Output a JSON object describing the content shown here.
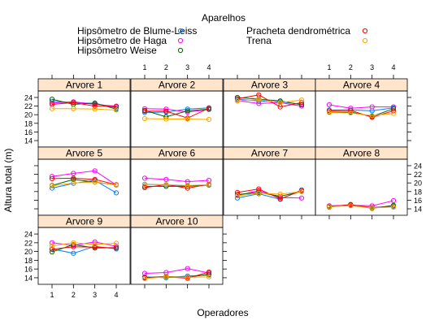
{
  "chart_data": {
    "type": "line",
    "legend_title": "Aparelhos",
    "xlabel": "Operadores",
    "ylabel": "Altura total (m)",
    "x": [
      1,
      2,
      3,
      4
    ],
    "x_ticks": [
      "1",
      "2",
      "3",
      "4"
    ],
    "y_ticks": [
      "14",
      "16",
      "18",
      "20",
      "22",
      "24"
    ],
    "ylim": [
      12.5,
      25.5
    ],
    "grid": false,
    "legend_position": "top",
    "series": [
      {
        "name": "Hipsômetro de Blume-Leiss",
        "color": "#0080ff"
      },
      {
        "name": "Hipsômetro de Haga",
        "color": "#ff00ff"
      },
      {
        "name": "Hipsômetro Weise",
        "color": "#006400"
      },
      {
        "name": "Pracheta dendrométrica",
        "color": "#ff0000"
      },
      {
        "name": "Trena",
        "color": "#ffa500"
      }
    ],
    "panels": [
      {
        "title": "Arvore 1",
        "values": [
          [
            23.1,
            22.8,
            22.6,
            21.6
          ],
          [
            22.7,
            23.0,
            22.4,
            22.0
          ],
          [
            23.6,
            22.4,
            22.7,
            21.3
          ],
          [
            22.4,
            22.8,
            22.0,
            21.9
          ],
          [
            21.4,
            21.4,
            21.3,
            21.1
          ]
        ]
      },
      {
        "title": "Arvore 2",
        "values": [
          [
            20.5,
            20.6,
            21.3,
            21.6
          ],
          [
            21.4,
            21.3,
            20.6,
            21.2
          ],
          [
            21.0,
            19.5,
            20.9,
            21.3
          ],
          [
            20.8,
            20.8,
            19.2,
            21.5
          ],
          [
            19.1,
            19.0,
            19.0,
            18.9
          ]
        ]
      },
      {
        "title": "Arvore 3",
        "values": [
          [
            23.6,
            23.2,
            23.0,
            22.4
          ],
          [
            23.3,
            22.6,
            22.8,
            22.0
          ],
          [
            24.0,
            23.6,
            23.2,
            22.3
          ],
          [
            23.7,
            24.6,
            21.8,
            22.8
          ],
          [
            23.2,
            23.5,
            22.8,
            23.4
          ]
        ]
      },
      {
        "title": "Arvore 4",
        "values": [
          [
            21.1,
            21.1,
            20.9,
            21.6
          ],
          [
            22.3,
            21.5,
            21.8,
            21.8
          ],
          [
            20.6,
            20.6,
            19.6,
            21.4
          ],
          [
            20.9,
            21.0,
            19.4,
            20.9
          ],
          [
            20.5,
            20.4,
            19.8,
            20.3
          ]
        ]
      },
      {
        "title": "Arvore 5",
        "values": [
          [
            18.8,
            19.9,
            20.6,
            17.7
          ],
          [
            21.5,
            22.2,
            22.8,
            19.5
          ],
          [
            19.4,
            20.8,
            20.2,
            19.5
          ],
          [
            21.0,
            21.1,
            20.8,
            19.6
          ],
          [
            19.3,
            20.0,
            20.2,
            19.5
          ]
        ]
      },
      {
        "title": "Arvore 6",
        "values": [
          [
            19.7,
            19.5,
            19.3,
            19.5
          ],
          [
            21.1,
            20.8,
            20.3,
            20.6
          ],
          [
            19.2,
            19.2,
            19.2,
            19.5
          ],
          [
            18.9,
            19.6,
            18.8,
            19.7
          ],
          [
            19.6,
            19.6,
            19.4,
            19.6
          ]
        ]
      },
      {
        "title": "Arvore 7",
        "values": [
          [
            16.5,
            17.5,
            16.2,
            18.4
          ],
          [
            17.1,
            18.2,
            16.6,
            16.5
          ],
          [
            17.3,
            17.8,
            16.9,
            18.0
          ],
          [
            17.8,
            18.6,
            16.3,
            18.2
          ],
          [
            17.0,
            17.6,
            17.4,
            18.0
          ]
        ]
      },
      {
        "title": "Arvore 8",
        "values": [
          [
            14.6,
            14.8,
            14.3,
            14.6
          ],
          [
            14.7,
            14.8,
            14.7,
            15.9
          ],
          [
            14.4,
            15.0,
            14.1,
            14.8
          ],
          [
            14.6,
            14.9,
            14.3,
            14.4
          ],
          [
            14.5,
            14.7,
            14.2,
            14.4
          ]
        ]
      },
      {
        "title": "Arvore 9",
        "values": [
          [
            20.6,
            19.6,
            21.2,
            20.6
          ],
          [
            22.0,
            21.4,
            22.2,
            21.2
          ],
          [
            19.9,
            21.6,
            20.8,
            20.9
          ],
          [
            20.5,
            21.1,
            21.0,
            20.8
          ],
          [
            21.3,
            22.0,
            21.6,
            21.9
          ]
        ]
      },
      {
        "title": "Arvore 10",
        "values": [
          [
            14.2,
            14.0,
            14.4,
            14.6
          ],
          [
            15.0,
            15.2,
            16.1,
            15.1
          ],
          [
            14.0,
            14.3,
            14.1,
            14.8
          ],
          [
            14.0,
            14.2,
            13.9,
            15.3
          ],
          [
            13.8,
            14.2,
            14.1,
            14.2
          ]
        ]
      }
    ]
  }
}
